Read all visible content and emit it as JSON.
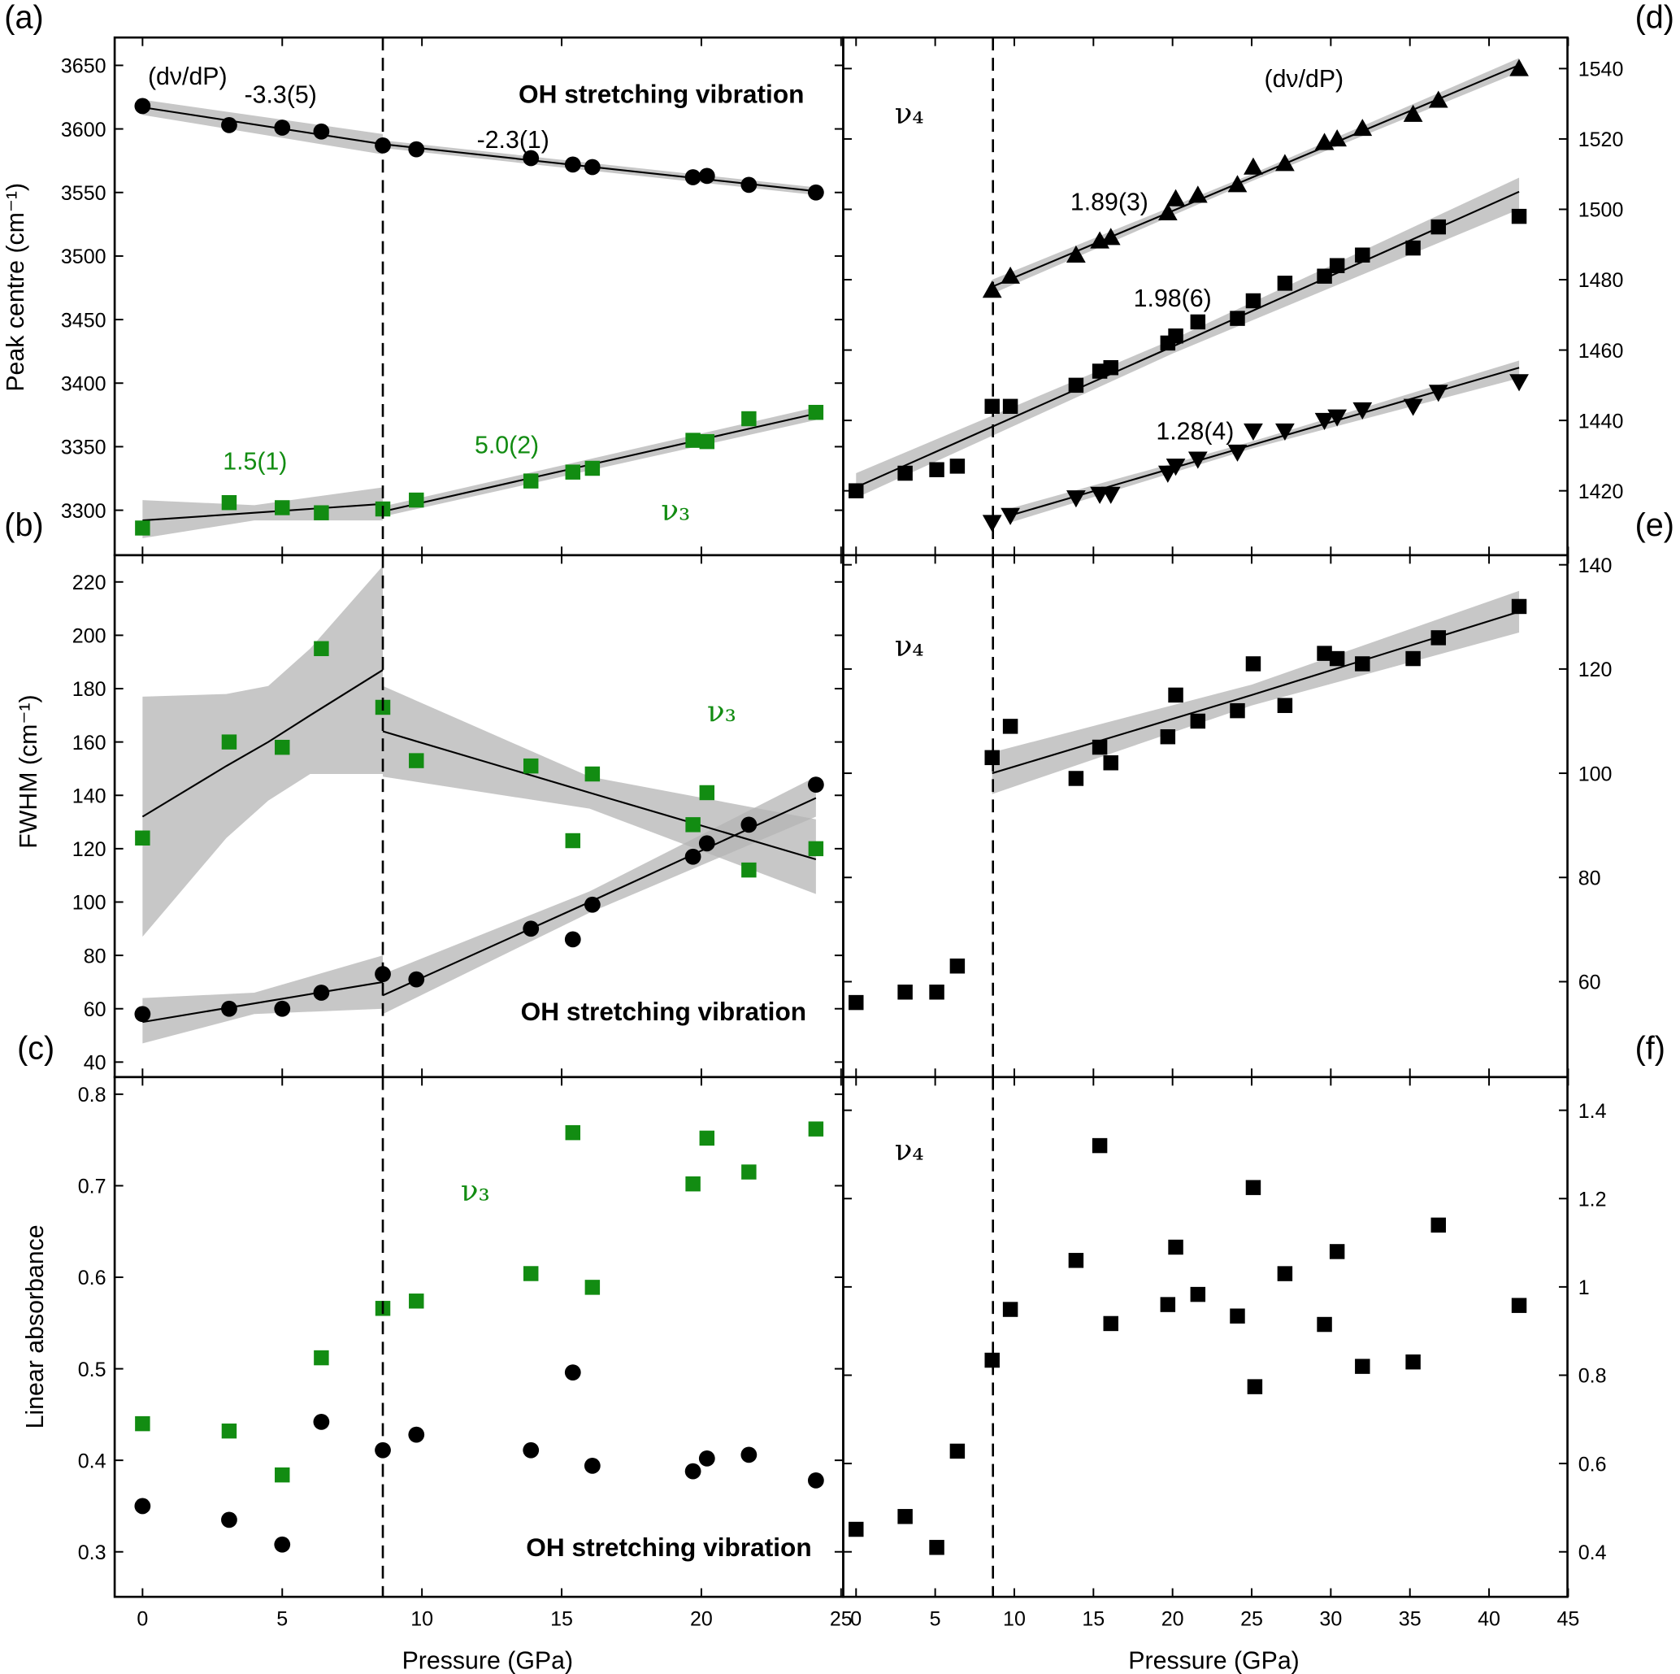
{
  "colors": {
    "black": "#000000",
    "green": "#128c12",
    "band": "#b4b4b4"
  },
  "panel_labels": [
    "(a)",
    "(b)",
    "(c)",
    "(d)",
    "(e)",
    "(f)"
  ],
  "x_title": "Pressure (GPa)",
  "y_titles": {
    "left_top": "Peak centre (cm⁻¹)",
    "left_mid": "FWHM (cm⁻¹)",
    "left_bot": "Linear absorbance"
  },
  "annotations": {
    "dvdp_left": "(dν/dP)",
    "dvdp_right": "(dν/dP)",
    "slope_a1": "-3.3(5)",
    "slope_a2": "-2.3(1)",
    "slope_b1": "1.5(1)",
    "slope_b2": "5.0(2)",
    "slope_d_up": "1.89(3)",
    "slope_d_sq": "1.98(6)",
    "slope_d_down": "1.28(4)",
    "oh_top": "OH stretching vibration",
    "oh_mid": "OH stretching vibration",
    "oh_bot": "OH stretching vibration",
    "nu3": "ν₃",
    "nu4": "ν₄"
  },
  "chart_data": [
    {
      "id": "a-b",
      "type": "scatter",
      "title": "Peak centre, OH stretching vibration",
      "xlabel": "Pressure (GPa)",
      "ylabel": "Peak centre (cm-1)",
      "xlim": [
        -1,
        25
      ],
      "ylim": [
        3275,
        3675
      ],
      "x_ticks": [
        0,
        5,
        10,
        15,
        20,
        25
      ],
      "y_ticks": [
        3300,
        3350,
        3400,
        3450,
        3500,
        3550,
        3600,
        3650
      ],
      "x": [
        0,
        3.1,
        5.0,
        6.4,
        8.6,
        9.8,
        13.9,
        15.4,
        16.1,
        19.7,
        20.2,
        21.7,
        24.1
      ],
      "series": [
        {
          "name": "OH peak",
          "color": "black",
          "marker": "circle",
          "values": [
            3618,
            3603,
            3601,
            3598,
            3587,
            3584,
            3577,
            3572,
            3570,
            3562,
            3563,
            3556,
            3550
          ]
        },
        {
          "name": "v3",
          "color": "green",
          "marker": "square",
          "values": [
            3286,
            3306,
            3302,
            3298,
            3301,
            3308,
            3323,
            3330,
            3333,
            3355,
            3354,
            3372,
            3377
          ]
        }
      ],
      "fits": [
        {
          "color": "black",
          "points": [
            [
              0,
              3617,
              3611,
              3623
            ],
            [
              8.6,
              3588,
              3580,
              3596
            ]
          ]
        },
        {
          "color": "black",
          "points": [
            [
              8.6,
              3588,
              3585,
              3591
            ],
            [
              24.1,
              3551,
              3548,
              3554
            ]
          ]
        },
        {
          "color": "green",
          "points": [
            [
              0,
              3292,
              3278,
              3308
            ],
            [
              4,
              3298,
              3292,
              3304
            ],
            [
              8.6,
              3305,
              3292,
              3318
            ]
          ]
        },
        {
          "color": "green",
          "points": [
            [
              8.6,
              3299,
              3295,
              3303
            ],
            [
              24.1,
              3376,
              3371,
              3381
            ]
          ]
        }
      ],
      "transition_pressure": 8.6
    },
    {
      "id": "d",
      "type": "scatter",
      "title": "Peak centre v4",
      "xlabel": "Pressure (GPa)",
      "ylim": [
        1405,
        1550
      ],
      "xlim": [
        0,
        45
      ],
      "x_ticks": [
        0,
        5,
        10,
        15,
        20,
        25,
        30,
        35,
        40,
        45
      ],
      "y_ticks": [
        1420,
        1440,
        1460,
        1480,
        1500,
        1520,
        1540
      ],
      "series": [
        {
          "name": "v4 square",
          "color": "black",
          "marker": "square",
          "x": [
            0,
            3.1,
            5.1,
            6.4,
            8.6,
            9.75,
            13.9,
            15.4,
            16.1,
            19.7,
            20.2,
            21.6,
            24.1,
            25.1,
            27.1,
            29.6,
            30.4,
            32.0,
            35.2,
            36.8,
            41.9
          ],
          "values": [
            1420,
            1425,
            1426,
            1427,
            1444,
            1444,
            1450,
            1454,
            1455,
            1462,
            1464,
            1468,
            1469,
            1474,
            1479,
            1481,
            1484,
            1487,
            1489,
            1495,
            1498
          ]
        },
        {
          "name": "v4 triangle-up",
          "color": "black",
          "marker": "triangle-up",
          "x": [
            8.6,
            9.75,
            13.9,
            15.4,
            16.1,
            19.7,
            20.2,
            21.6,
            24.1,
            25.1,
            27.1,
            29.6,
            30.4,
            32.0,
            35.2,
            36.8,
            41.9
          ],
          "values": [
            1477,
            1481,
            1487,
            1491,
            1492,
            1499,
            1503,
            1504,
            1507,
            1512,
            1513,
            1519,
            1520,
            1523,
            1527,
            1531,
            1540
          ]
        },
        {
          "name": "v4 triangle-down",
          "color": "black",
          "marker": "triangle-down",
          "x": [
            8.6,
            9.75,
            13.9,
            15.4,
            16.1,
            19.7,
            20.2,
            21.6,
            24.1,
            25.1,
            27.1,
            29.6,
            30.4,
            32.0,
            35.2,
            36.8,
            41.9
          ],
          "values": [
            1411,
            1413,
            1418,
            1419,
            1419,
            1425,
            1427,
            1429,
            1431,
            1437,
            1437,
            1440,
            1441,
            1443,
            1444,
            1448,
            1451
          ]
        }
      ],
      "fits": [
        {
          "color": "black",
          "points": [
            [
              0,
              1421,
              1418,
              1425
            ],
            [
              20,
              1461,
              1459,
              1463
            ],
            [
              41.9,
              1505,
              1500,
              1509
            ]
          ]
        },
        {
          "color": "black",
          "points": [
            [
              8.6,
              1478,
              1476,
              1480
            ],
            [
              25,
              1509,
              1508,
              1510
            ],
            [
              41.9,
              1541,
              1539,
              1543
            ]
          ]
        },
        {
          "color": "black",
          "points": [
            [
              9.75,
              1413,
              1411,
              1415
            ],
            [
              25,
              1433,
              1432,
              1434
            ],
            [
              41.9,
              1455,
              1452,
              1457
            ]
          ]
        }
      ],
      "transition_pressure": 8.65
    },
    {
      "id": "c-fwhm",
      "type": "scatter",
      "title": "FWHM, OH stretching vibration",
      "xlabel": "Pressure (GPa)",
      "ylabel": "FWHM (cm-1)",
      "ylim": [
        35,
        230
      ],
      "xlim": [
        -1,
        25
      ],
      "x_ticks": [
        0,
        5,
        10,
        15,
        20,
        25
      ],
      "y_ticks": [
        40,
        60,
        80,
        100,
        120,
        140,
        160,
        180,
        200,
        220
      ],
      "x": [
        0,
        3.1,
        5.0,
        6.4,
        8.6,
        9.8,
        13.9,
        15.4,
        16.1,
        19.7,
        20.2,
        21.7,
        24.1
      ],
      "series": [
        {
          "name": "OH",
          "color": "black",
          "marker": "circle",
          "values": [
            58,
            60,
            60,
            66,
            73,
            71,
            90,
            86,
            99,
            117,
            122,
            129,
            144
          ]
        },
        {
          "name": "v3",
          "color": "green",
          "marker": "square",
          "values": [
            124,
            160,
            158,
            195,
            173,
            153,
            151,
            123,
            148,
            129,
            141,
            112,
            120
          ]
        }
      ],
      "fits": [
        {
          "color": "black",
          "points": [
            [
              0,
              55,
              47,
              64
            ],
            [
              4,
              62,
              58,
              66
            ],
            [
              8.6,
              70,
              60,
              80
            ]
          ]
        },
        {
          "color": "black",
          "points": [
            [
              8.6,
              65,
              58,
              73
            ],
            [
              16,
              100,
              96,
              104
            ],
            [
              24.1,
              139,
              132,
              147
            ]
          ]
        },
        {
          "color": "green",
          "points": [
            [
              0,
              132,
              87,
              177
            ],
            [
              3,
              151,
              124,
              178
            ],
            [
              4.5,
              160,
              138,
              181
            ],
            [
              6,
              170,
              148,
              195
            ],
            [
              8.6,
              187,
              148,
              226
            ]
          ]
        },
        {
          "color": "green",
          "points": [
            [
              8.6,
              164,
              147,
              181
            ],
            [
              16,
              141,
              135,
              147
            ],
            [
              24.1,
              116,
              103,
              131
            ]
          ]
        }
      ],
      "transition_pressure": 8.6
    },
    {
      "id": "e",
      "type": "scatter",
      "title": "FWHM v4",
      "ylim": [
        42,
        143
      ],
      "xlim": [
        0,
        45
      ],
      "x_ticks": [
        0,
        5,
        10,
        15,
        20,
        25,
        30,
        35,
        40,
        45
      ],
      "y_ticks": [
        60,
        80,
        100,
        120,
        140
      ],
      "series": [
        {
          "name": "v4",
          "color": "black",
          "marker": "square",
          "x": [
            0,
            3.1,
            5.1,
            6.4,
            8.6,
            9.75,
            13.9,
            15.4,
            16.1,
            19.7,
            20.2,
            21.6,
            24.1,
            25.1,
            27.1,
            29.6,
            30.4,
            32.0,
            35.2,
            36.8,
            41.9
          ],
          "values": [
            56,
            58,
            58,
            63,
            103,
            109,
            99,
            105,
            102,
            107,
            115,
            110,
            112,
            121,
            113,
            123,
            122,
            121,
            122,
            126,
            132
          ]
        }
      ],
      "fits": [
        {
          "color": "black",
          "points": [
            [
              8.6,
              100,
              96,
              104
            ],
            [
              25,
              115,
              113,
              117
            ],
            [
              41.9,
              131,
              127,
              135
            ]
          ]
        }
      ],
      "transition_pressure": 8.65
    },
    {
      "id": "c-abs",
      "type": "scatter",
      "title": "Linear absorbance, OH stretching vibration",
      "xlabel": "Pressure (GPa)",
      "ylabel": "Linear absorbance",
      "ylim": [
        0.28,
        0.82
      ],
      "xlim": [
        -1,
        25
      ],
      "x_ticks": [
        0,
        5,
        10,
        15,
        20,
        25
      ],
      "y_ticks": [
        0.3,
        0.4,
        0.5,
        0.6,
        0.7,
        0.8
      ],
      "x": [
        0,
        3.1,
        5.0,
        6.4,
        8.6,
        9.8,
        13.9,
        15.4,
        16.1,
        19.7,
        20.2,
        21.7,
        24.1
      ],
      "series": [
        {
          "name": "OH",
          "color": "black",
          "marker": "circle",
          "values": [
            0.35,
            0.335,
            0.308,
            0.442,
            0.411,
            0.428,
            0.411,
            0.496,
            0.394,
            0.388,
            0.402,
            0.406,
            0.378
          ]
        },
        {
          "name": "v3",
          "color": "green",
          "marker": "square",
          "values": [
            0.44,
            0.432,
            0.384,
            0.512,
            0.566,
            0.574,
            0.604,
            0.758,
            0.589,
            0.702,
            0.752,
            0.715,
            0.762
          ]
        }
      ],
      "fits": [],
      "transition_pressure": 8.6
    },
    {
      "id": "f",
      "type": "scatter",
      "title": "Linear absorbance v4",
      "ylim": [
        0.38,
        1.48
      ],
      "xlim": [
        0,
        45
      ],
      "x_ticks": [
        0,
        5,
        10,
        15,
        20,
        25,
        30,
        35,
        40,
        45
      ],
      "y_ticks": [
        0.4,
        0.6,
        0.8,
        1.0,
        1.2,
        1.4
      ],
      "series": [
        {
          "name": "v4",
          "color": "black",
          "marker": "square",
          "x": [
            0,
            3.1,
            5.1,
            6.4,
            8.6,
            9.75,
            13.9,
            15.4,
            16.1,
            19.7,
            20.2,
            21.6,
            24.1,
            25.1,
            25.2,
            27.1,
            29.6,
            30.4,
            32.0,
            35.2,
            36.8,
            41.9
          ],
          "values": [
            0.451,
            0.48,
            0.41,
            0.628,
            0.834,
            0.949,
            1.06,
            1.32,
            0.917,
            0.96,
            1.09,
            0.983,
            0.934,
            1.225,
            0.774,
            1.03,
            0.915,
            1.08,
            0.82,
            0.83,
            1.14,
            0.958
          ]
        }
      ],
      "fits": [],
      "transition_pressure": 8.65
    }
  ]
}
